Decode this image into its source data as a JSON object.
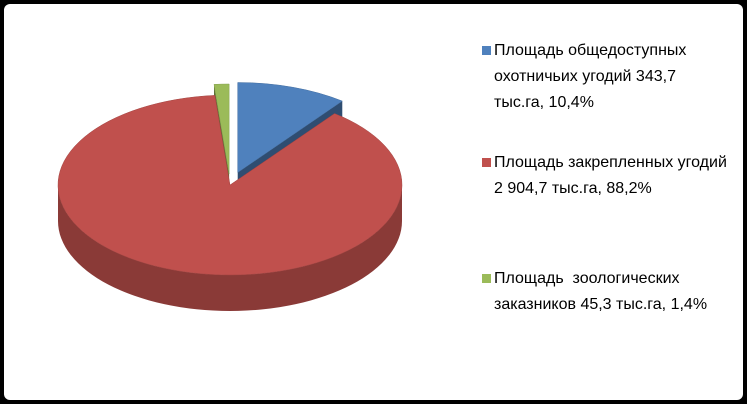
{
  "chart_data": {
    "type": "pie3d",
    "series": [
      {
        "name": "Площадь общедоступных охотничьих угодий 343,7 тыс.га, 10,4%",
        "color": "#4f81bd",
        "values": [
          10.4
        ]
      },
      {
        "name": "Площадь закрепленных угодий 2 904,7 тыс.га, 88,2%",
        "color": "#c0504d",
        "values": [
          88.2
        ]
      },
      {
        "name": "Площадь  зоологических заказников 45,3 тыс.га, 1,4%",
        "color": "#9bbb59",
        "values": [
          1.4
        ]
      }
    ],
    "legend": "right"
  }
}
